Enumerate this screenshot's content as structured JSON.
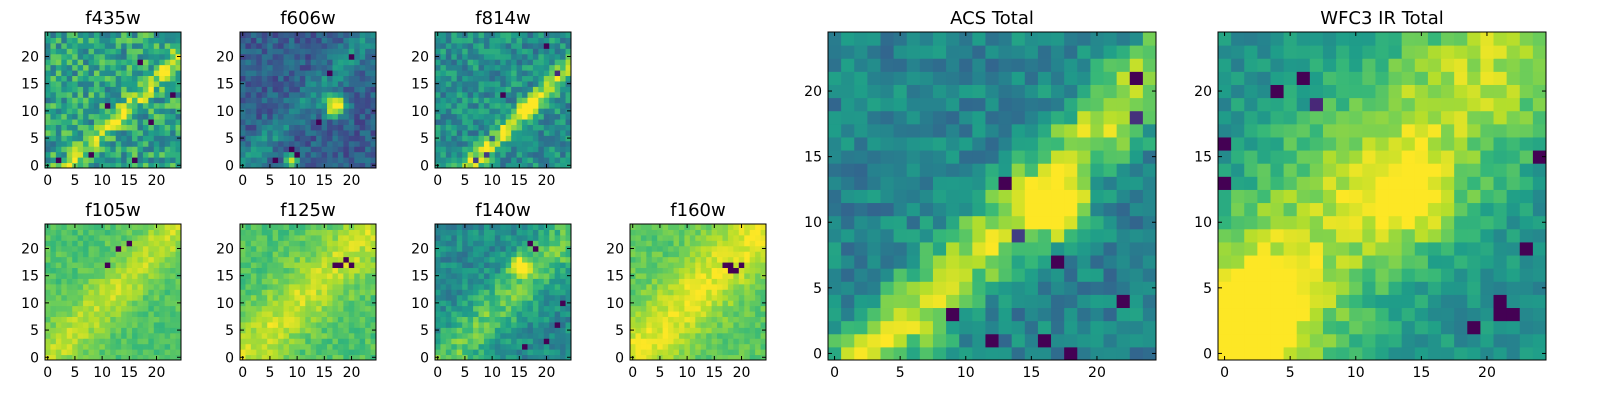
{
  "colormap": {
    "name": "viridis",
    "stops": [
      "#440154",
      "#482878",
      "#3e4989",
      "#31688e",
      "#26828e",
      "#1f9e89",
      "#35b779",
      "#6ece58",
      "#b5de2b",
      "#fde725"
    ]
  },
  "chart_data": [
    {
      "id": "f435w",
      "type": "heatmap",
      "title": "f435w",
      "grid_size": 25,
      "xlim": [
        0,
        24
      ],
      "ylim": [
        0,
        24
      ],
      "xticks": [
        0,
        5,
        10,
        15,
        20
      ],
      "yticks": [
        0,
        5,
        10,
        15,
        20
      ],
      "features": {
        "background": 0.58,
        "noise": 0.22,
        "line": {
          "offset": -4,
          "width": 1.1,
          "amp": 0.32
        },
        "blobs": [],
        "holes": [
          [
            2,
            1,
            0.9
          ],
          [
            17,
            19,
            0.8
          ],
          [
            11,
            11,
            0.8
          ],
          [
            16,
            1,
            0.8
          ],
          [
            23,
            13,
            0.8
          ],
          [
            19,
            8,
            0.8
          ],
          [
            8,
            2,
            0.8
          ]
        ]
      }
    },
    {
      "id": "f606w",
      "type": "heatmap",
      "title": "f606w",
      "grid_size": 25,
      "xlim": [
        0,
        24
      ],
      "ylim": [
        0,
        24
      ],
      "xticks": [
        0,
        5,
        10,
        15,
        20
      ],
      "yticks": [
        0,
        5,
        10,
        15,
        20
      ],
      "features": {
        "background": 0.3,
        "noise": 0.12,
        "line": {
          "offset": 0,
          "width": 1.6,
          "amp": 0.2
        },
        "blobs": [
          [
            17,
            11,
            1.3,
            0.9
          ],
          [
            9,
            1,
            0.8,
            0.7
          ]
        ],
        "holes": [
          [
            16,
            17,
            0.8
          ],
          [
            20,
            20,
            0.8
          ],
          [
            9,
            3,
            0.7
          ],
          [
            14,
            8,
            0.6
          ],
          [
            6,
            1,
            0.8
          ],
          [
            10,
            2,
            0.7
          ]
        ]
      }
    },
    {
      "id": "f814w",
      "type": "heatmap",
      "title": "f814w",
      "grid_size": 25,
      "xlim": [
        0,
        24
      ],
      "ylim": [
        0,
        24
      ],
      "xticks": [
        0,
        5,
        10,
        15,
        20
      ],
      "yticks": [
        0,
        5,
        10,
        15,
        20
      ],
      "features": {
        "background": 0.5,
        "noise": 0.17,
        "line": {
          "offset": -6,
          "width": 1.1,
          "amp": 0.45
        },
        "blobs": [
          [
            17,
            11,
            1.0,
            0.5
          ]
        ],
        "holes": [
          [
            20,
            22,
            0.8
          ],
          [
            22,
            17,
            0.7
          ],
          [
            10,
            5,
            0.7
          ],
          [
            9,
            2,
            0.7
          ],
          [
            7,
            1,
            0.8
          ],
          [
            12,
            13,
            0.7
          ]
        ]
      }
    },
    {
      "id": "f105w",
      "type": "heatmap",
      "title": "f105w",
      "grid_size": 25,
      "xlim": [
        0,
        24
      ],
      "ylim": [
        0,
        24
      ],
      "xticks": [
        0,
        5,
        10,
        15,
        20
      ],
      "yticks": [
        0,
        5,
        10,
        15,
        20
      ],
      "features": {
        "background": 0.72,
        "noise": 0.07,
        "line": {
          "offset": 0,
          "width": 3.0,
          "amp": 0.18
        },
        "blobs": [],
        "holes": [
          [
            13,
            20,
            1.0
          ],
          [
            15,
            21,
            1.0
          ],
          [
            11,
            17,
            1.0
          ]
        ]
      }
    },
    {
      "id": "f125w",
      "type": "heatmap",
      "title": "f125w",
      "grid_size": 25,
      "xlim": [
        0,
        24
      ],
      "ylim": [
        0,
        24
      ],
      "xticks": [
        0,
        5,
        10,
        15,
        20
      ],
      "yticks": [
        0,
        5,
        10,
        15,
        20
      ],
      "features": {
        "background": 0.72,
        "noise": 0.08,
        "line": {
          "offset": 0,
          "width": 3.5,
          "amp": 0.2
        },
        "blobs": [],
        "holes": [
          [
            17,
            17,
            1.0
          ],
          [
            18,
            17,
            1.0
          ],
          [
            19,
            18,
            1.0
          ],
          [
            20,
            17,
            1.0
          ]
        ]
      }
    },
    {
      "id": "f140w",
      "type": "heatmap",
      "title": "f140w",
      "grid_size": 25,
      "xlim": [
        0,
        24
      ],
      "ylim": [
        0,
        24
      ],
      "xticks": [
        0,
        5,
        10,
        15,
        20
      ],
      "yticks": [
        0,
        5,
        10,
        15,
        20
      ],
      "features": {
        "background": 0.48,
        "noise": 0.12,
        "line": {
          "offset": -2,
          "width": 3.0,
          "amp": 0.28
        },
        "blobs": [
          [
            15,
            17,
            1.2,
            0.5
          ]
        ],
        "holes": [
          [
            17,
            21,
            1.0
          ],
          [
            18,
            20,
            1.0
          ],
          [
            20,
            3,
            0.8
          ],
          [
            22,
            6,
            0.7
          ],
          [
            16,
            2,
            0.7
          ],
          [
            23,
            10,
            0.6
          ]
        ]
      }
    },
    {
      "id": "f160w",
      "type": "heatmap",
      "title": "f160w",
      "grid_size": 25,
      "xlim": [
        0,
        24
      ],
      "ylim": [
        0,
        24
      ],
      "xticks": [
        0,
        5,
        10,
        15,
        20
      ],
      "yticks": [
        0,
        5,
        10,
        15,
        20
      ],
      "features": {
        "background": 0.74,
        "noise": 0.07,
        "line": {
          "offset": 0,
          "width": 4.0,
          "amp": 0.22
        },
        "blobs": [],
        "holes": [
          [
            17,
            17,
            1.0
          ],
          [
            18,
            17,
            1.0
          ],
          [
            19,
            16,
            1.0
          ],
          [
            20,
            17,
            1.0
          ],
          [
            18,
            16,
            1.0
          ]
        ]
      }
    },
    {
      "id": "acs-total",
      "type": "heatmap",
      "title": "ACS Total",
      "grid_size": 25,
      "xlim": [
        0,
        24
      ],
      "ylim": [
        0,
        24
      ],
      "xticks": [
        0,
        5,
        10,
        15,
        20
      ],
      "yticks": [
        0,
        5,
        10,
        15,
        20
      ],
      "features": {
        "background": 0.45,
        "noise": 0.13,
        "line": {
          "offset": -3,
          "width": 2.0,
          "amp": 0.45
        },
        "blobs": [
          [
            17,
            11,
            1.3,
            0.9
          ]
        ],
        "holes": [
          [
            12,
            1,
            0.9
          ],
          [
            9,
            3,
            0.9
          ],
          [
            16,
            1,
            0.8
          ],
          [
            18,
            0,
            0.8
          ],
          [
            13,
            13,
            0.8
          ],
          [
            17,
            7,
            0.8
          ],
          [
            23,
            21,
            0.8
          ],
          [
            23,
            18,
            0.7
          ],
          [
            14,
            9,
            0.7
          ],
          [
            22,
            4,
            0.6
          ]
        ]
      }
    },
    {
      "id": "wfc3-ir-total",
      "type": "heatmap",
      "title": "WFC3 IR Total",
      "grid_size": 25,
      "xlim": [
        0,
        24
      ],
      "ylim": [
        0,
        24
      ],
      "xticks": [
        0,
        5,
        10,
        15,
        20
      ],
      "yticks": [
        0,
        5,
        10,
        15,
        20
      ],
      "features": {
        "background": 0.5,
        "noise": 0.1,
        "line": {
          "offset": 2,
          "width": 5.0,
          "amp": 0.38
        },
        "blobs": [
          [
            2,
            2,
            3.5,
            0.35
          ],
          [
            14,
            12,
            2.5,
            0.3
          ]
        ],
        "holes": [
          [
            21,
            4,
            1.0
          ],
          [
            21,
            3,
            1.0
          ],
          [
            22,
            3,
            1.0
          ],
          [
            19,
            2,
            0.8
          ],
          [
            0,
            16,
            0.9
          ],
          [
            4,
            20,
            0.9
          ],
          [
            0,
            13,
            0.8
          ],
          [
            23,
            8,
            0.8
          ],
          [
            24,
            15,
            0.8
          ],
          [
            6,
            21,
            0.6
          ],
          [
            7,
            19,
            0.6
          ]
        ]
      }
    }
  ]
}
